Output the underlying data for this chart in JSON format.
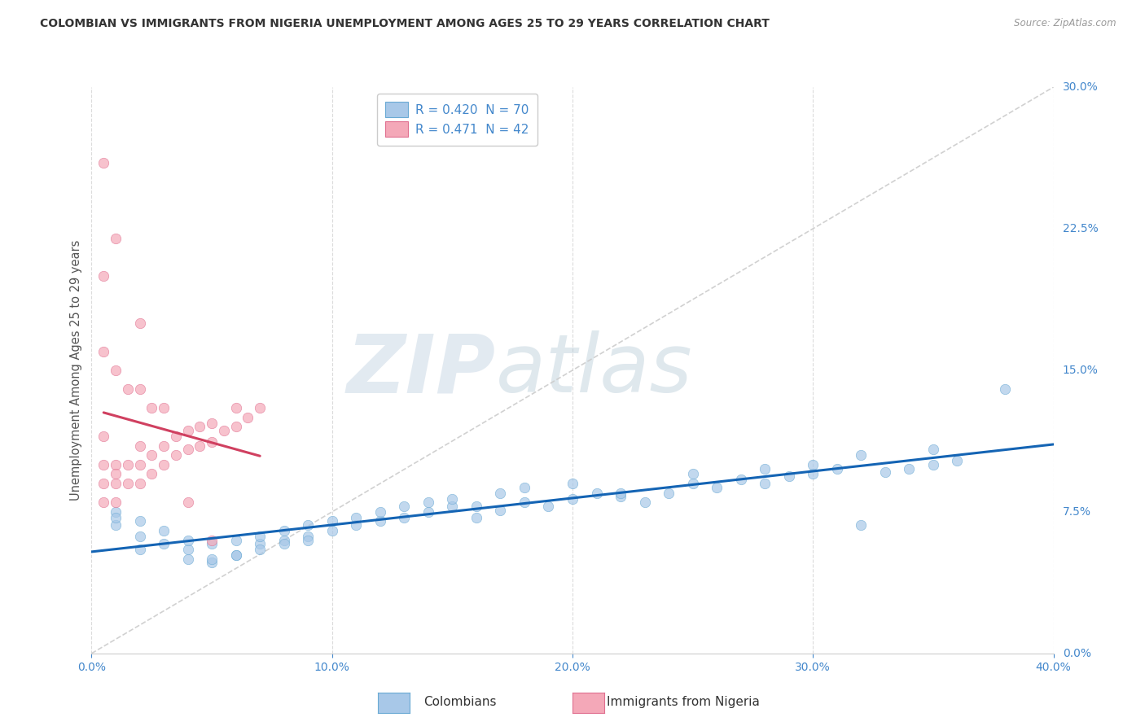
{
  "title": "COLOMBIAN VS IMMIGRANTS FROM NIGERIA UNEMPLOYMENT AMONG AGES 25 TO 29 YEARS CORRELATION CHART",
  "source": "Source: ZipAtlas.com",
  "ylabel": "Unemployment Among Ages 25 to 29 years",
  "xlabel_colombians": "Colombians",
  "xlabel_nigerians": "Immigrants from Nigeria",
  "x_min": 0.0,
  "x_max": 0.4,
  "y_min": 0.0,
  "y_max": 0.3,
  "colombian_R": 0.42,
  "colombian_N": 70,
  "nigerian_R": 0.471,
  "nigerian_N": 42,
  "colombian_color": "#a8c8e8",
  "colombian_edge_color": "#6aaad4",
  "nigerian_color": "#f4a8b8",
  "nigerian_edge_color": "#e07090",
  "colombian_line_color": "#1464b4",
  "nigerian_line_color": "#d04060",
  "diag_color": "#cccccc",
  "watermark_zip_color": "#d0dce8",
  "watermark_atlas_color": "#b8ccd8",
  "background_color": "#ffffff",
  "grid_color": "#cccccc",
  "title_color": "#333333",
  "source_color": "#999999",
  "tick_label_color": "#4488cc",
  "legend_text_color": "#4488cc",
  "ylabel_color": "#555555",
  "bottom_label_color": "#333333",
  "colombian_points_x": [
    0.02,
    0.04,
    0.05,
    0.06,
    0.07,
    0.08,
    0.09,
    0.1,
    0.11,
    0.12,
    0.13,
    0.14,
    0.15,
    0.16,
    0.17,
    0.18,
    0.19,
    0.2,
    0.21,
    0.22,
    0.23,
    0.24,
    0.25,
    0.26,
    0.27,
    0.28,
    0.29,
    0.3,
    0.31,
    0.32,
    0.33,
    0.34,
    0.35,
    0.36,
    0.01,
    0.01,
    0.02,
    0.02,
    0.03,
    0.03,
    0.04,
    0.04,
    0.05,
    0.05,
    0.06,
    0.06,
    0.07,
    0.07,
    0.08,
    0.08,
    0.09,
    0.09,
    0.1,
    0.11,
    0.12,
    0.13,
    0.14,
    0.15,
    0.16,
    0.17,
    0.18,
    0.2,
    0.22,
    0.25,
    0.28,
    0.3,
    0.32,
    0.35,
    0.38,
    0.01
  ],
  "colombian_points_y": [
    0.055,
    0.05,
    0.048,
    0.052,
    0.058,
    0.06,
    0.062,
    0.065,
    0.068,
    0.07,
    0.072,
    0.075,
    0.078,
    0.072,
    0.076,
    0.08,
    0.078,
    0.082,
    0.085,
    0.083,
    0.08,
    0.085,
    0.09,
    0.088,
    0.092,
    0.09,
    0.094,
    0.095,
    0.098,
    0.068,
    0.096,
    0.098,
    0.1,
    0.102,
    0.068,
    0.075,
    0.062,
    0.07,
    0.058,
    0.065,
    0.055,
    0.06,
    0.05,
    0.058,
    0.052,
    0.06,
    0.055,
    0.062,
    0.058,
    0.065,
    0.06,
    0.068,
    0.07,
    0.072,
    0.075,
    0.078,
    0.08,
    0.082,
    0.078,
    0.085,
    0.088,
    0.09,
    0.085,
    0.095,
    0.098,
    0.1,
    0.105,
    0.108,
    0.14,
    0.072
  ],
  "nigerian_points_x": [
    0.005,
    0.005,
    0.005,
    0.01,
    0.01,
    0.01,
    0.015,
    0.015,
    0.02,
    0.02,
    0.02,
    0.025,
    0.025,
    0.03,
    0.03,
    0.035,
    0.035,
    0.04,
    0.04,
    0.045,
    0.045,
    0.05,
    0.05,
    0.055,
    0.06,
    0.06,
    0.065,
    0.07,
    0.005,
    0.01,
    0.015,
    0.02,
    0.025,
    0.005,
    0.005,
    0.01,
    0.02,
    0.03,
    0.04,
    0.05,
    0.005,
    0.01
  ],
  "nigerian_points_y": [
    0.08,
    0.09,
    0.1,
    0.08,
    0.09,
    0.1,
    0.09,
    0.1,
    0.09,
    0.1,
    0.11,
    0.095,
    0.105,
    0.1,
    0.11,
    0.105,
    0.115,
    0.108,
    0.118,
    0.11,
    0.12,
    0.112,
    0.122,
    0.118,
    0.12,
    0.13,
    0.125,
    0.13,
    0.16,
    0.15,
    0.14,
    0.175,
    0.13,
    0.2,
    0.26,
    0.22,
    0.14,
    0.13,
    0.08,
    0.06,
    0.115,
    0.095
  ]
}
